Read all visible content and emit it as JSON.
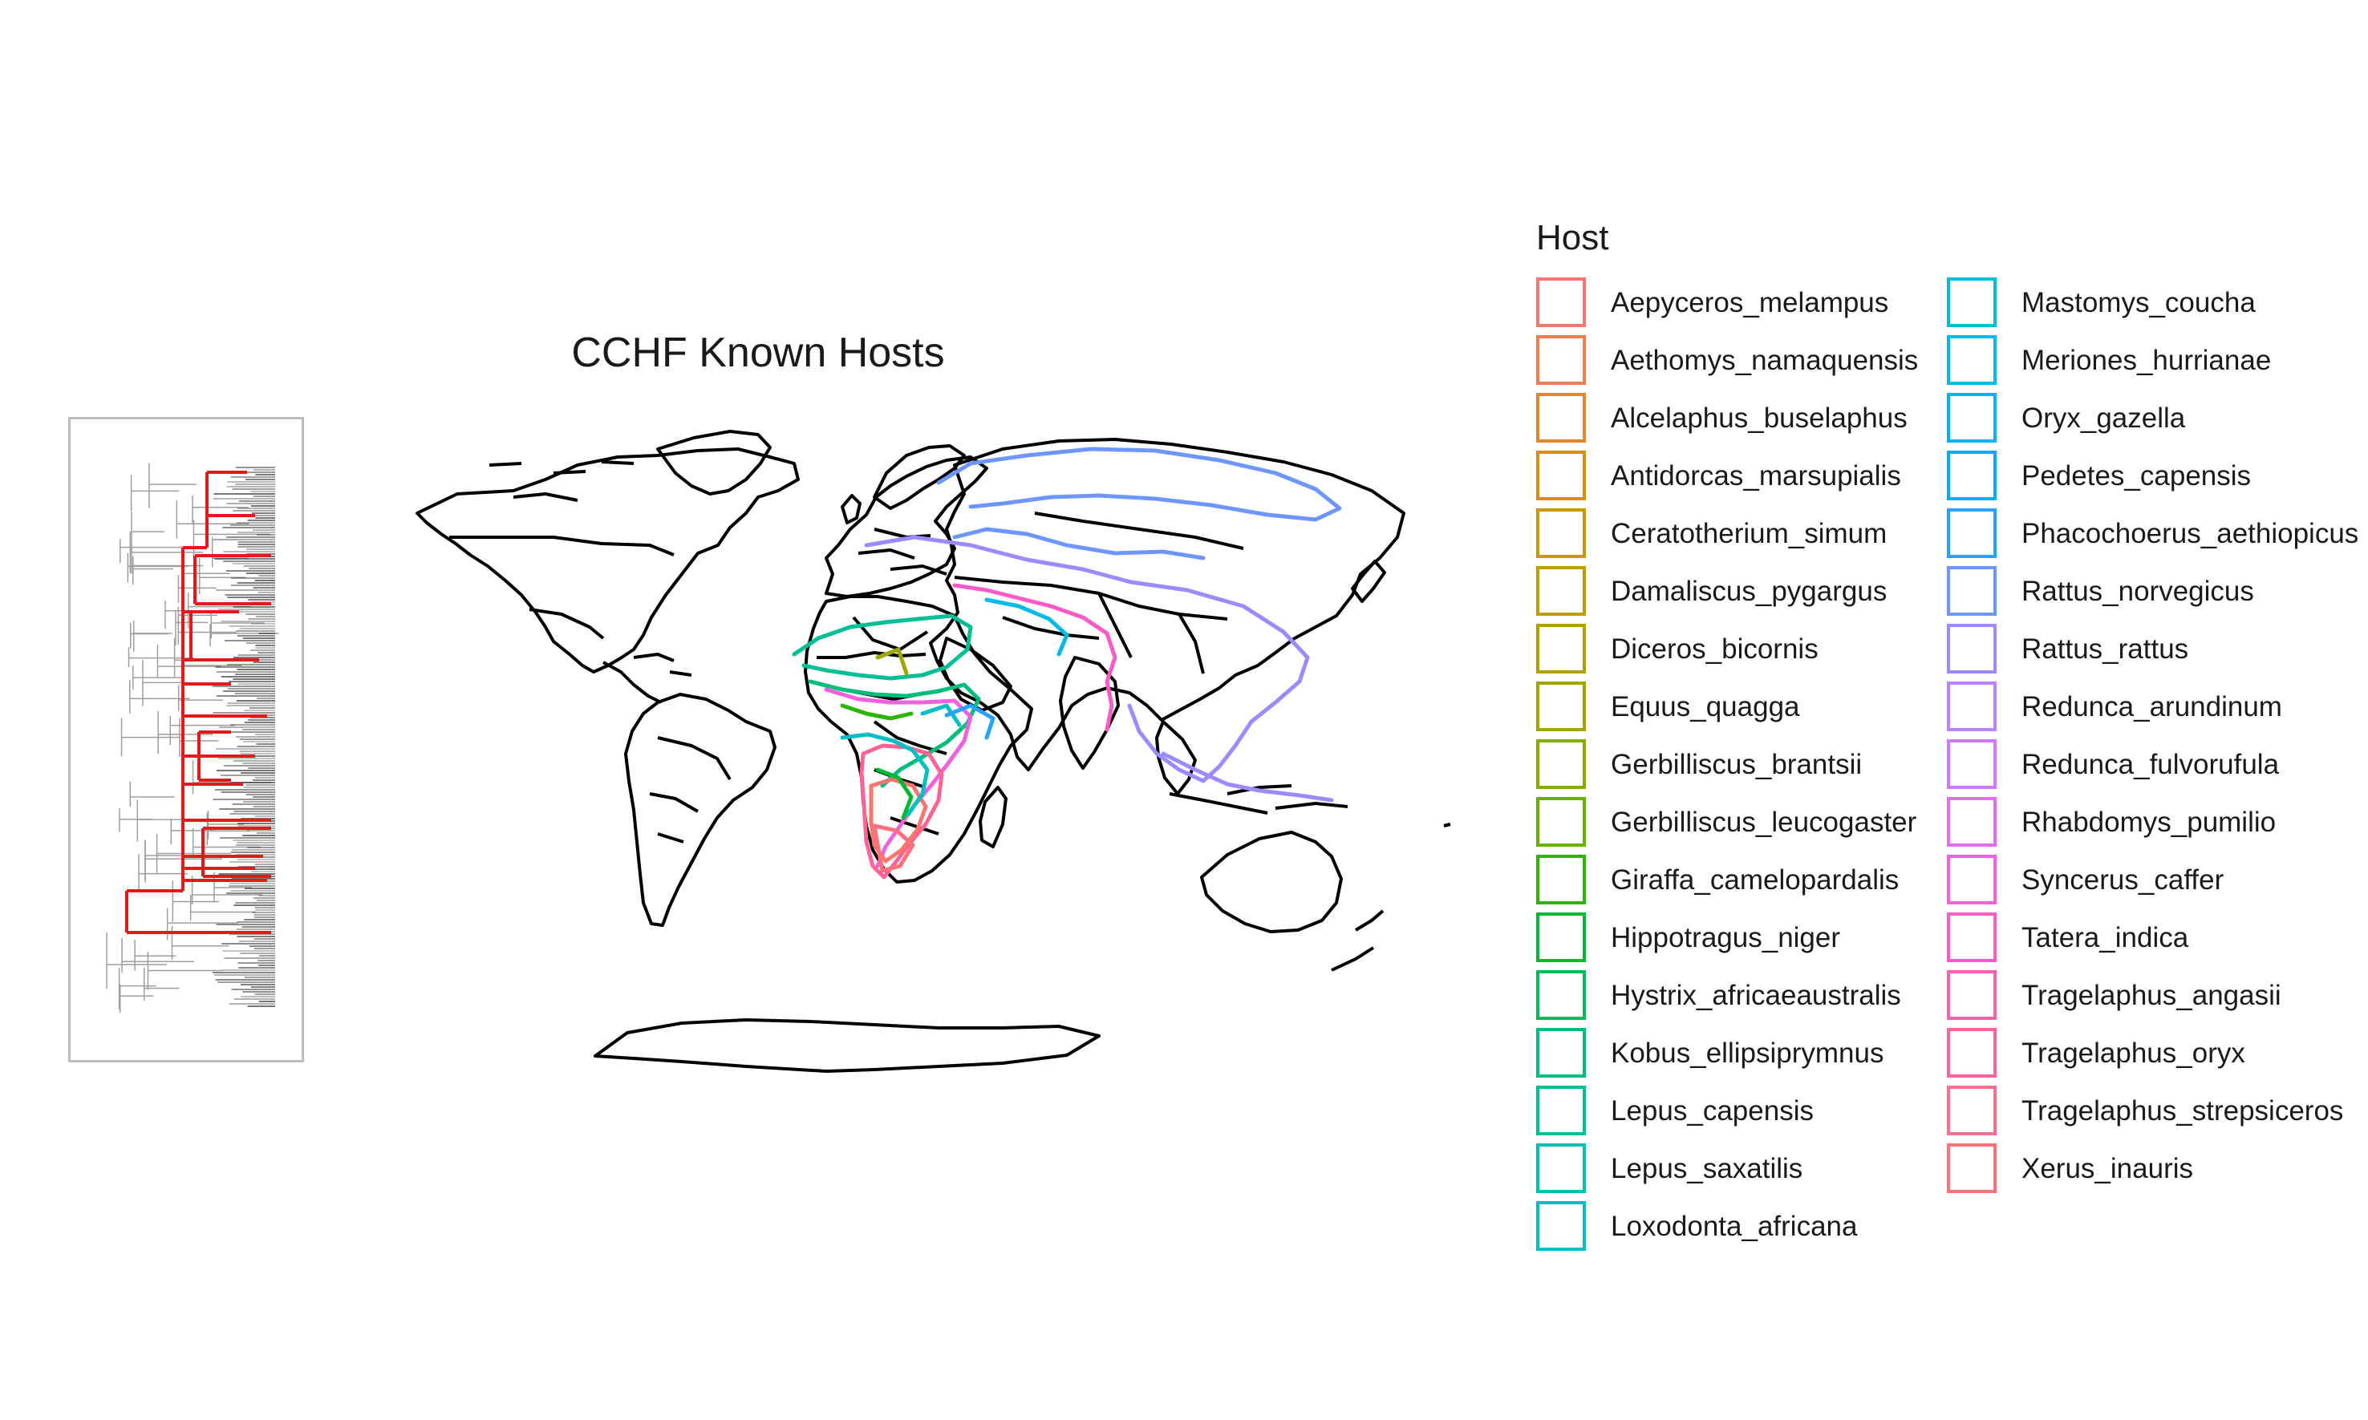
{
  "map": {
    "title": "CCHF Known Hosts",
    "projection": "world map, Robinson-like, black country outlines",
    "highlight_region": "Africa, Middle East, South & Southeast Asia, Europe"
  },
  "tree": {
    "description": "phylogenetic tree thumbnail, highlighted clade lineages in red",
    "highlight_color": "#E31A1C",
    "branch_color": "#333333"
  },
  "legend": {
    "title": "Host",
    "items": [
      {
        "label": "Aepyceros_melampus",
        "color": "#F8766D"
      },
      {
        "label": "Aethomys_namaquensis",
        "color": "#F27D52"
      },
      {
        "label": "Alcelaphus_buselaphus",
        "color": "#E8852A"
      },
      {
        "label": "Antidorcas_marsupialis",
        "color": "#D89000"
      },
      {
        "label": "Ceratotherium_simum",
        "color": "#CC9600"
      },
      {
        "label": "Damaliscus_pygargus",
        "color": "#BF9C00"
      },
      {
        "label": "Diceros_bicornis",
        "color": "#B0A200"
      },
      {
        "label": "Equus_quagga",
        "color": "#9DA700"
      },
      {
        "label": "Gerbilliscus_brantsii",
        "color": "#86AC00"
      },
      {
        "label": "Gerbilliscus_leucogaster",
        "color": "#66B100"
      },
      {
        "label": "Giraffa_camelopardalis",
        "color": "#2BB600"
      },
      {
        "label": "Hippotragus_niger",
        "color": "#00B934"
      },
      {
        "label": "Hystrix_africaeaustralis",
        "color": "#00BB5A"
      },
      {
        "label": "Kobus_ellipsiprymnus",
        "color": "#00BD7A"
      },
      {
        "label": "Lepus_capensis",
        "color": "#00BF96"
      },
      {
        "label": "Lepus_saxatilis",
        "color": "#00C0AF"
      },
      {
        "label": "Loxodonta_africana",
        "color": "#00C0C6"
      },
      {
        "label": "Mastomys_coucha",
        "color": "#00BED9"
      },
      {
        "label": "Meriones_hurrianae",
        "color": "#00BAE8"
      },
      {
        "label": "Oryx_gazella",
        "color": "#00B4F2"
      },
      {
        "label": "Pedetes_capensis",
        "color": "#00ACFA"
      },
      {
        "label": "Phacochoerus_aethiopicus",
        "color": "#28A2FF"
      },
      {
        "label": "Rattus_norvegicus",
        "color": "#6E96FF"
      },
      {
        "label": "Rattus_rattus",
        "color": "#9A8CFF"
      },
      {
        "label": "Redunca_arundinum",
        "color": "#B983FF"
      },
      {
        "label": "Redunca_fulvorufula",
        "color": "#D277FF"
      },
      {
        "label": "Rhabdomys_pumilio",
        "color": "#E56BF2"
      },
      {
        "label": "Syncerus_caffer",
        "color": "#F260DE"
      },
      {
        "label": "Tatera_indica",
        "color": "#FB5BC8"
      },
      {
        "label": "Tragelaphus_angasii",
        "color": "#FF5FAE"
      },
      {
        "label": "Tragelaphus_oryx",
        "color": "#FF6494"
      },
      {
        "label": "Tragelaphus_strepsiceros",
        "color": "#FF6C91"
      },
      {
        "label": "Xerus_inauris",
        "color": "#FD717A"
      }
    ]
  }
}
